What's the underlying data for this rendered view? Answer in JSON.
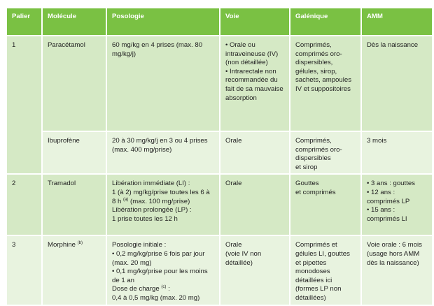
{
  "headers": [
    "Palier",
    "Molécule",
    "Posologie",
    "Voie",
    "Galénique",
    "AMM"
  ],
  "rows": [
    {
      "palier": "1",
      "molecule": "Paracétamol",
      "posologie": [
        "60 mg/kg en 4 prises (max. 80 mg/kg/j)"
      ],
      "voie": [
        "• Orale ou intraveineuse (IV) (non détaillée)",
        "• Intrarectale non recommandée du fait de sa mauvaise absorption"
      ],
      "galenique": [
        "Comprimés, comprimés oro-dispersibles, gélules, sirop, sachets, ampoules IV et suppositoires"
      ],
      "amm": [
        "Dès la naissance"
      ]
    },
    {
      "palier": "",
      "molecule": "Ibuprofène",
      "posologie": [
        "20 à 30 mg/kg/j en 3 ou 4 prises (max. 400 mg/prise)"
      ],
      "voie": [
        "Orale"
      ],
      "galenique": [
        "Comprimés, comprimés oro-dispersibles",
        "et sirop"
      ],
      "amm": [
        "3 mois"
      ]
    },
    {
      "palier": "2",
      "molecule": "Tramadol",
      "posologie": [
        "Libération immédiate (LI) :",
        "1 (à 2) mg/kg/prise toutes les 6 à 8 h",
        "(a)",
        "(max. 100 mg/prise)",
        "Libération prolongée (LP) :",
        "1 prise toutes les 12 h"
      ],
      "voie": [
        "Orale"
      ],
      "galenique": [
        "Gouttes",
        "et comprimés"
      ],
      "amm": [
        "• 3 ans : gouttes",
        "• 12 ans : comprimés LP",
        "• 15 ans : comprimés LI"
      ]
    },
    {
      "palier": "3",
      "molecule": "Morphine",
      "molecule_note": "(b)",
      "posologie": [
        "Posologie initiale :",
        "• 0,2 mg/kg/prise 6 fois par jour (max. 20 mg)",
        "• 0,1 mg/kg/prise pour les moins de 1 an",
        "Dose de charge",
        "(c)",
        ":",
        "0,4 à 0,5 mg/kg (max. 20 mg)"
      ],
      "voie": [
        "Orale",
        "(voie IV non détaillée)"
      ],
      "galenique": [
        "Comprimés et gélules LI, gouttes et pipettes monodoses détaillées ici (formes LP non détaillées)"
      ],
      "amm": [
        "Voie orale : 6 mois (usage hors AMM dès la naissance)"
      ]
    }
  ],
  "colors": {
    "header": "#7ac143",
    "row_dark": "#d5e9c5",
    "row_light": "#e8f3df"
  }
}
